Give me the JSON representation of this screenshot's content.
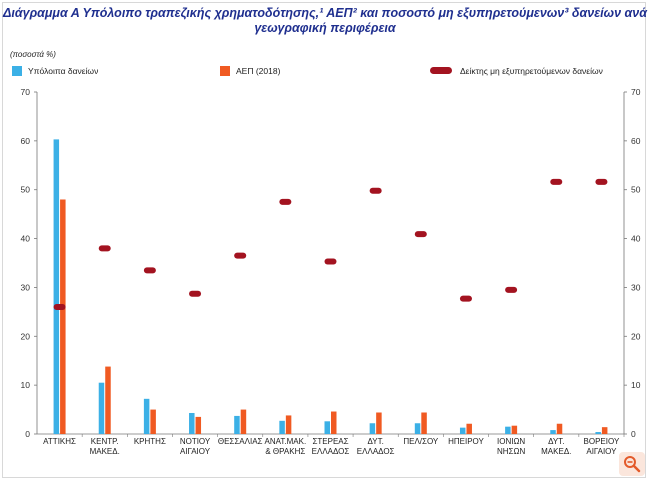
{
  "title_line1": "Διάγραμμα Α Υπόλοιπο τραπεζικής χρηματοδότησης,¹ ΑΕΠ² και ποσοστό μη εξυπηρετούμενων³ δανείων ανά",
  "title_line2": "γεωγραφική περιφέρεια",
  "unit_label": "(ποσοστά %)",
  "colors": {
    "loans": "#3bb0e6",
    "gdp": "#f05a22",
    "npl": "#a31320",
    "title": "#1f2f8f"
  },
  "legend": {
    "loans": "Υπόλοιπα δανείων",
    "gdp": "ΑΕΠ (2018)",
    "npl": "Δείκτης μη εξυπηρετούμενων δανείων"
  },
  "chart_data": {
    "type": "bar",
    "categories": [
      [
        "ΑΤΤΙΚΗΣ"
      ],
      [
        "ΚΕΝΤΡ.",
        "ΜΑΚΕΔ."
      ],
      [
        "ΚΡΗΤΗΣ"
      ],
      [
        "ΝΟΤΙΟΥ",
        "ΑΙΓΑΙΟΥ"
      ],
      [
        "ΘΕΣΣΑΛΙΑΣ"
      ],
      [
        "ΑΝΑΤ.ΜΑΚ.",
        "& ΘΡΑΚΗΣ"
      ],
      [
        "ΣΤΕΡΕΑΣ",
        "ΕΛΛΑΔΟΣ"
      ],
      [
        "ΔΥΤ.",
        "ΕΛΛΑΔΟΣ"
      ],
      [
        "ΠΕΛ/ΣΟΥ"
      ],
      [
        "ΗΠΕΙΡΟΥ"
      ],
      [
        "ΙΟΝΙΩΝ",
        "ΝΗΣΩΝ"
      ],
      [
        "ΔΥΤ.",
        "ΜΑΚΕΔ."
      ],
      [
        "ΒΟΡΕΙΟΥ",
        "ΑΙΓΑΙΟΥ"
      ]
    ],
    "series": [
      {
        "name": "Υπόλοιπα δανείων",
        "kind": "bar",
        "values": [
          60.3,
          10.5,
          7.2,
          4.3,
          3.7,
          2.7,
          2.6,
          2.2,
          2.2,
          1.3,
          1.5,
          0.8,
          0.4
        ]
      },
      {
        "name": "ΑΕΠ (2018)",
        "kind": "bar",
        "values": [
          48.0,
          13.8,
          5.0,
          3.5,
          5.0,
          3.8,
          4.6,
          4.4,
          4.4,
          2.1,
          1.7,
          2.1,
          1.4
        ]
      },
      {
        "name": "Δείκτης μη εξυπηρετούμενων δανείων",
        "kind": "marker",
        "values": [
          26.0,
          38.0,
          33.5,
          28.7,
          36.5,
          47.5,
          35.3,
          49.8,
          40.9,
          27.7,
          29.5,
          51.6,
          51.6
        ]
      }
    ],
    "ylim": [
      0,
      70
    ],
    "yticks": [
      0,
      10,
      20,
      30,
      40,
      50,
      60,
      70
    ],
    "ylabel": "(ποσοστά %)",
    "xlabel": ""
  }
}
